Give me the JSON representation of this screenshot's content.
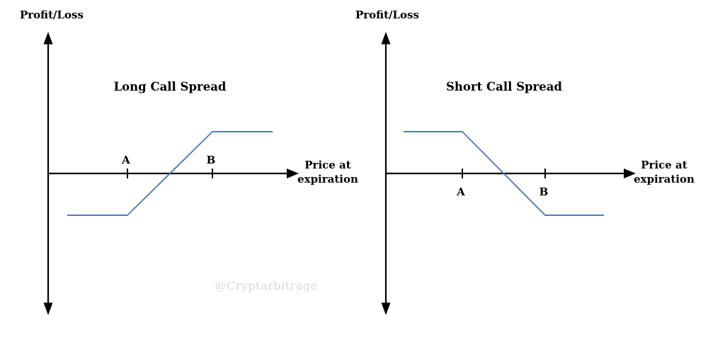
{
  "diagram": {
    "watermark": "@Cryptarbitrage",
    "colors": {
      "axis": "#000000",
      "payoff": "#4a7dbe",
      "title": "#3b72bc",
      "text": "#000000",
      "watermark": "#d8d8d8",
      "background": "#ffffff"
    },
    "panels": [
      {
        "id": "long-call-spread",
        "title": "Long Call Spread",
        "y_axis_label": "Profit/Loss",
        "x_axis_label": [
          "Price at",
          "expiration"
        ],
        "strike_labels": [
          "A",
          "B"
        ],
        "strike_label_side": "above-axis",
        "payoff_shape": "Flat at maximum loss below strike A, rises linearly between strike A and strike B crossing zero midway, flat at maximum profit above strike B",
        "payoff_points": [
          [
            -0.71,
            -1
          ],
          [
            0,
            -1
          ],
          [
            1,
            1
          ],
          [
            1.71,
            1
          ]
        ]
      },
      {
        "id": "short-call-spread",
        "title": "Short Call Spread",
        "y_axis_label": "Profit/Loss",
        "x_axis_label": [
          "Price at",
          "expiration"
        ],
        "strike_labels": [
          "A",
          "B"
        ],
        "strike_label_side": "below-axis",
        "payoff_shape": "Flat at maximum profit below strike A, falls linearly between strike A and strike B crossing zero midway, flat at maximum loss above strike B",
        "payoff_points": [
          [
            -0.71,
            1
          ],
          [
            0,
            1
          ],
          [
            1,
            -1
          ],
          [
            1.71,
            -1
          ]
        ]
      }
    ]
  }
}
